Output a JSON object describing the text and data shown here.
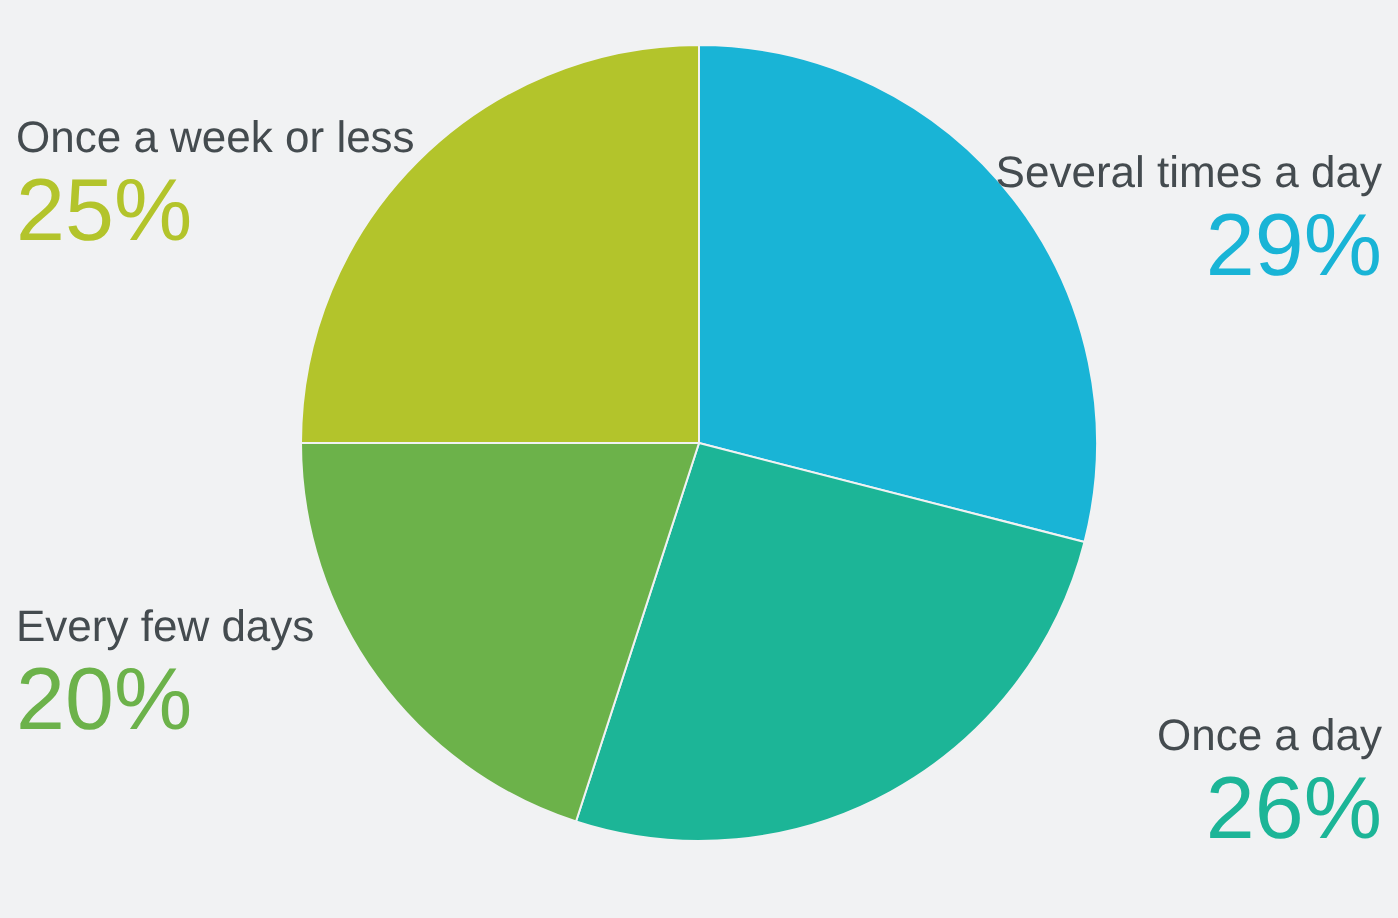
{
  "chart_data": {
    "type": "pie",
    "categories": [
      "Several times a day",
      "Once a day",
      "Every few days",
      "Once a week or less"
    ],
    "values": [
      29,
      26,
      20,
      25
    ],
    "colors": [
      "#19b4d6",
      "#1cb597",
      "#6cb24a",
      "#b3c42b"
    ],
    "value_labels": [
      "29%",
      "26%",
      "20%",
      "25%"
    ],
    "legend": false
  }
}
